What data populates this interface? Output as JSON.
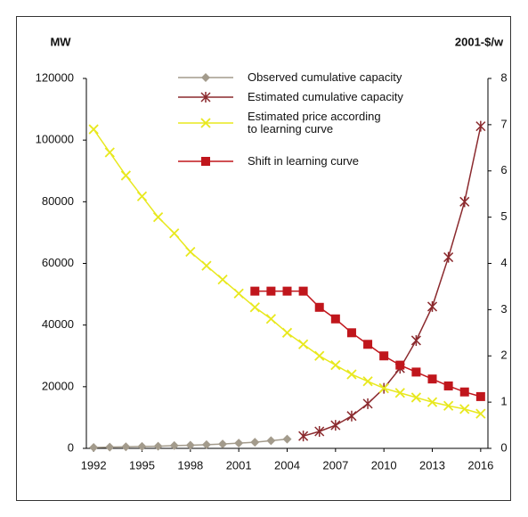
{
  "chart_data": {
    "type": "line",
    "ylabel": "MW",
    "y2label": "2001-$/w",
    "xlim": [
      1991.55,
      2016.45
    ],
    "xticks": [
      1992,
      1995,
      1998,
      2001,
      2004,
      2007,
      2010,
      2013,
      2016
    ],
    "ylim": [
      0,
      120000
    ],
    "yticks": [
      0,
      20000,
      40000,
      60000,
      80000,
      100000,
      120000
    ],
    "y2lim": [
      0,
      8
    ],
    "y2ticks": [
      0,
      1,
      2,
      3,
      4,
      5,
      6,
      7,
      8
    ],
    "series": [
      {
        "name": "Observed cumulative capacity",
        "color": "#a39b8c",
        "marker": "diamond",
        "x": [
          1992,
          1993,
          1994,
          1995,
          1996,
          1997,
          1998,
          1999,
          2000,
          2001,
          2002,
          2003,
          2004
        ],
        "values": [
          300,
          400,
          500,
          600,
          700,
          900,
          1000,
          1200,
          1400,
          1700,
          2000,
          2500,
          3000
        ]
      },
      {
        "name": "Estimated cumulative capacity",
        "color": "#8b2a2e",
        "marker": "asterisk",
        "x": [
          2005,
          2006,
          2007,
          2008,
          2009,
          2010,
          2011,
          2012,
          2013,
          2014,
          2015,
          2016
        ],
        "values": [
          4000,
          5500,
          7500,
          10500,
          14500,
          19500,
          26000,
          35000,
          46000,
          62000,
          80000,
          104500
        ]
      },
      {
        "name": "Estimated price according\nto learning curve",
        "color": "#e8e81e",
        "marker": "x",
        "axis": "y2",
        "x": [
          1992,
          1993,
          1994,
          1995,
          1996,
          1997,
          1998,
          1999,
          2000,
          2001,
          2002,
          2003,
          2004,
          2005,
          2006,
          2007,
          2008,
          2009,
          2010,
          2011,
          2012,
          2013,
          2014,
          2015,
          2016
        ],
        "values": [
          6.9,
          6.4,
          5.9,
          5.45,
          5.0,
          4.65,
          4.25,
          3.95,
          3.65,
          3.35,
          3.05,
          2.8,
          2.5,
          2.25,
          2.0,
          1.8,
          1.6,
          1.45,
          1.3,
          1.2,
          1.1,
          1.0,
          0.92,
          0.85,
          0.75
        ]
      },
      {
        "name": "Shift in learning curve",
        "color": "#c0161c",
        "marker": "square",
        "axis": "y2",
        "x": [
          2002,
          2003,
          2004,
          2005,
          2006,
          2007,
          2008,
          2009,
          2010,
          2011,
          2012,
          2013,
          2014,
          2015,
          2016
        ],
        "values": [
          3.4,
          3.4,
          3.4,
          3.4,
          3.05,
          2.8,
          2.5,
          2.25,
          2.0,
          1.8,
          1.65,
          1.5,
          1.35,
          1.22,
          1.12
        ]
      }
    ]
  }
}
